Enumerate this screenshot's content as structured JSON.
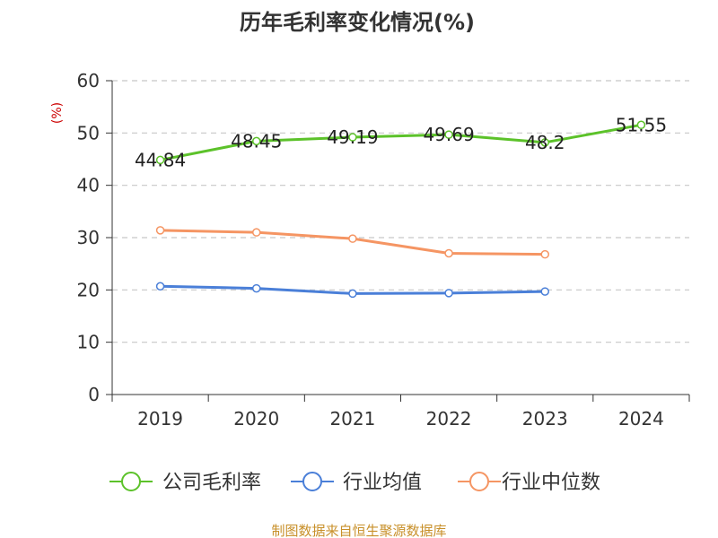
{
  "chart_data": {
    "type": "line",
    "title": "历年毛利率变化情况(%)",
    "ylabel": "(%)",
    "xlabel": "",
    "categories": [
      "2019",
      "2020",
      "2021",
      "2022",
      "2023",
      "2024"
    ],
    "ylim": [
      0,
      60
    ],
    "yticks": [
      0,
      10,
      20,
      30,
      40,
      50,
      60
    ],
    "grid": "horizontal-dashed",
    "legend_position": "bottom",
    "series": [
      {
        "name": "公司毛利率",
        "color": "#5cc22a",
        "values": [
          44.84,
          48.45,
          49.19,
          49.69,
          48.2,
          51.55
        ],
        "labels": [
          "44.84",
          "48.45",
          "49.19",
          "49.69",
          "48.2",
          "51.55"
        ]
      },
      {
        "name": "行业均值",
        "color": "#4a7fd8",
        "values": [
          20.7,
          20.3,
          19.3,
          19.4,
          19.7,
          null
        ]
      },
      {
        "name": "行业中位数",
        "color": "#f59563",
        "values": [
          31.4,
          31.0,
          29.8,
          27.0,
          26.8,
          null
        ]
      }
    ],
    "source": "制图数据来自恒生聚源数据库"
  }
}
